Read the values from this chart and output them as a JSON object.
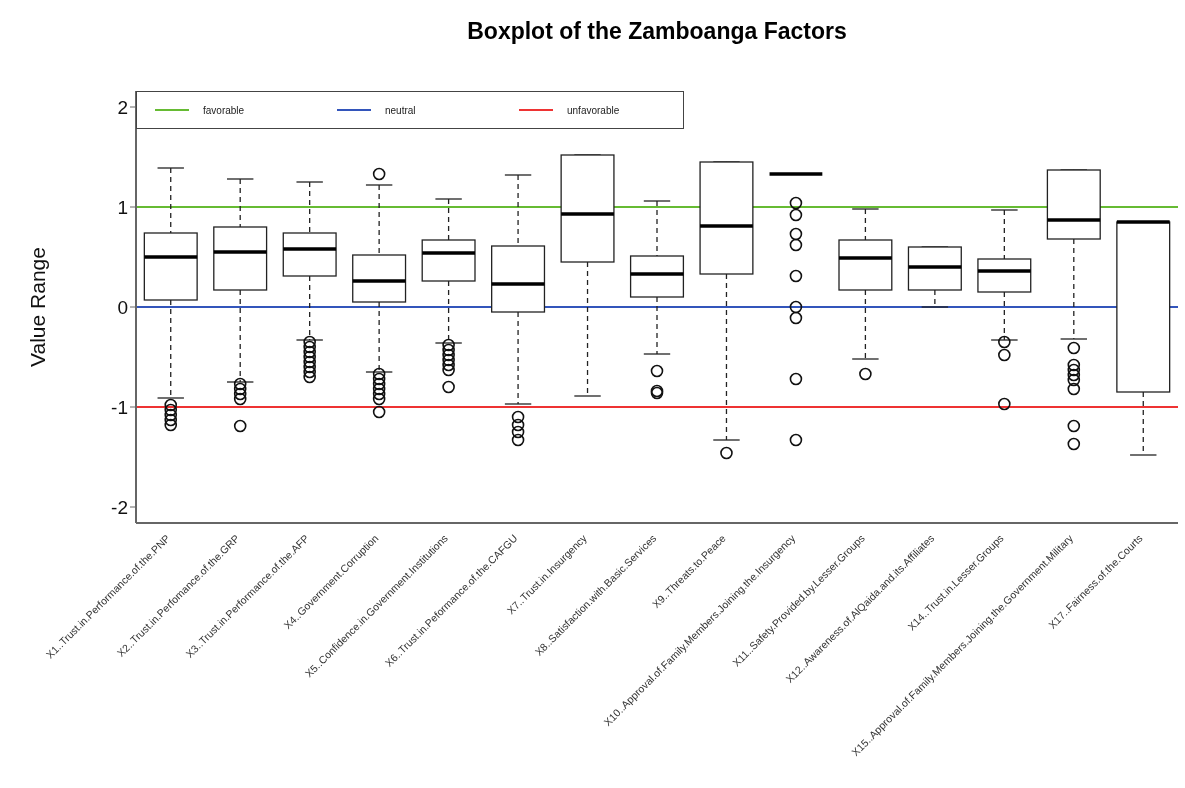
{
  "chart_data": {
    "type": "box",
    "title": "Boxplot of the Zamboanga Factors",
    "ylabel": "Value Range",
    "categories": [
      "X1..Trust.in.Performance.of.the.PNP",
      "X2..Trust.in.Perfomance.of.the.GRP",
      "X3..Trust.in.Performance.of.the.AFP",
      "X4..Government.Corruption",
      "X5..Confidence.in.Government.Institutions",
      "X6..Trust.in.Peformance.of.the.CAFGU",
      "X7..Trust.in.Insurgency",
      "X8..Satisfaction.with.Basic.Services",
      "X9..Threats.to.Peace",
      "X10..Approval.of.Family.Members.Joining.the.Insurgency",
      "X11..Safety.Provided.by.Lesser.Groups",
      "X12..Awareness.of.AlQaida.and.its.Affiliates",
      "X14..Trust.in.Lesser.Groups",
      "X15..Approval.of.Family.Members.Joining.the.Government.Military",
      "X17..Fairness.of.the.Courts"
    ],
    "boxes": [
      {
        "low": -0.91,
        "q1": 0.07,
        "median": 0.5,
        "q3": 0.74,
        "high": 1.39,
        "outliers": [
          -0.98,
          -1.03,
          -1.08,
          -1.13,
          -1.18
        ]
      },
      {
        "low": -0.75,
        "q1": 0.17,
        "median": 0.55,
        "q3": 0.8,
        "high": 1.28,
        "outliers": [
          -0.77,
          -0.82,
          -0.87,
          -0.92,
          -1.19
        ]
      },
      {
        "low": -0.33,
        "q1": 0.31,
        "median": 0.58,
        "q3": 0.74,
        "high": 1.25,
        "outliers": [
          -0.35,
          -0.4,
          -0.45,
          -0.5,
          -0.55,
          -0.6,
          -0.65,
          -0.7
        ]
      },
      {
        "low": -0.65,
        "q1": 0.05,
        "median": 0.26,
        "q3": 0.52,
        "high": 1.22,
        "outliers": [
          1.33,
          -0.67,
          -0.72,
          -0.77,
          -0.82,
          -0.87,
          -0.92,
          -1.05
        ]
      },
      {
        "low": -0.36,
        "q1": 0.26,
        "median": 0.54,
        "q3": 0.67,
        "high": 1.08,
        "outliers": [
          -0.38,
          -0.43,
          -0.48,
          -0.53,
          -0.58,
          -0.63,
          -0.8
        ]
      },
      {
        "low": -0.97,
        "q1": -0.05,
        "median": 0.23,
        "q3": 0.61,
        "high": 1.32,
        "outliers": [
          -1.1,
          -1.18,
          -1.25,
          -1.33
        ]
      },
      {
        "low": -0.89,
        "q1": 0.45,
        "median": 0.93,
        "q3": 1.52,
        "high": 1.52
      },
      {
        "low": -0.47,
        "q1": 0.1,
        "median": 0.33,
        "q3": 0.51,
        "high": 1.06,
        "outliers": [
          -0.64,
          -0.84,
          -0.86
        ]
      },
      {
        "low": -1.33,
        "q1": 0.33,
        "median": 0.81,
        "q3": 1.45,
        "high": 1.45,
        "outliers": [
          -1.46
        ]
      },
      {
        "low": 1.33,
        "q1": 1.33,
        "median": 1.33,
        "q3": 1.33,
        "high": 1.33,
        "outliers": [
          1.04,
          0.92,
          0.73,
          0.62,
          0.31,
          0.0,
          -0.11,
          -0.72,
          -1.33
        ]
      },
      {
        "low": -0.52,
        "q1": 0.17,
        "median": 0.49,
        "q3": 0.67,
        "high": 0.98,
        "outliers": [
          -0.67
        ]
      },
      {
        "low": 0.0,
        "q1": 0.17,
        "median": 0.4,
        "q3": 0.6,
        "high": 0.6
      },
      {
        "low": -0.33,
        "q1": 0.15,
        "median": 0.36,
        "q3": 0.48,
        "high": 0.97,
        "outliers": [
          -0.35,
          -0.48,
          -0.97
        ]
      },
      {
        "low": -0.32,
        "q1": 0.68,
        "median": 0.87,
        "q3": 1.37,
        "high": 1.37,
        "outliers": [
          -0.41,
          -0.58,
          -0.63,
          -0.68,
          -0.73,
          -0.82,
          -1.19,
          -1.37
        ]
      },
      {
        "low": -1.48,
        "q1": -0.85,
        "median": 0.85,
        "q3": 0.85,
        "high": 0.85
      }
    ],
    "ylim": [
      -2.16,
      2.16
    ],
    "yticks": [
      -2,
      -1,
      0,
      1,
      2
    ],
    "ref_lines": [
      {
        "axis": "y",
        "value": 1,
        "label": "favorable",
        "color": "#66bb33"
      },
      {
        "axis": "y",
        "value": 0,
        "label": "neutral",
        "color": "#3355bb"
      },
      {
        "axis": "y",
        "value": -1,
        "label": "unfavorable",
        "color": "#ee3333"
      }
    ],
    "legend": "top left"
  }
}
